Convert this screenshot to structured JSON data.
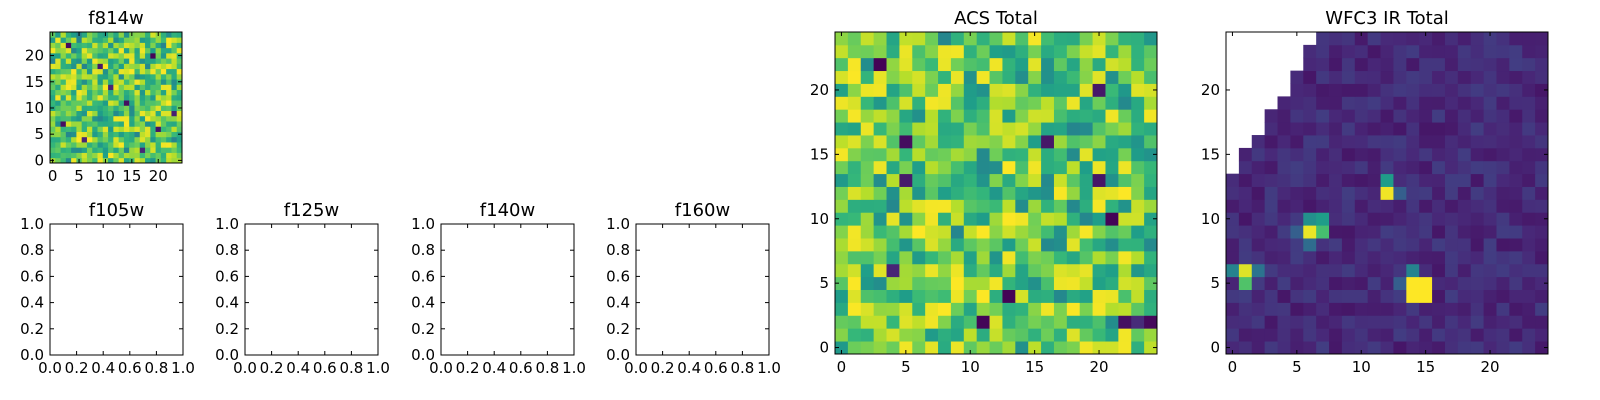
{
  "chart_data": [
    {
      "type": "heatmap",
      "title": "f814w",
      "grid_size": 25,
      "colormap": "viridis",
      "xticks": [
        "0",
        "5",
        "10",
        "15",
        "20"
      ],
      "yticks": [
        "0",
        "5",
        "10",
        "15",
        "20"
      ],
      "xlim": [
        -0.5,
        24.5
      ],
      "ylim": [
        -0.5,
        24.5
      ],
      "value_range": [
        0,
        1
      ],
      "low_value_cells": [
        [
          3,
          22
        ],
        [
          9,
          18
        ],
        [
          14,
          11
        ],
        [
          20,
          6
        ],
        [
          6,
          4
        ],
        [
          17,
          2
        ],
        [
          23,
          9
        ],
        [
          11,
          14
        ],
        [
          2,
          7
        ],
        [
          19,
          20
        ]
      ],
      "high_value_cells": [
        [
          5,
          5
        ],
        [
          13,
          8
        ],
        [
          21,
          3
        ],
        [
          8,
          19
        ],
        [
          16,
          15
        ],
        [
          1,
          12
        ],
        [
          24,
          17
        ]
      ]
    },
    {
      "type": "empty",
      "title": "f105w",
      "xlim": [
        0,
        1
      ],
      "ylim": [
        0,
        1
      ],
      "xticks": [
        "0.0",
        "0.2",
        "0.4",
        "0.6",
        "0.8",
        "1.0"
      ],
      "yticks": [
        "0.0",
        "0.2",
        "0.4",
        "0.6",
        "0.8",
        "1.0"
      ]
    },
    {
      "type": "empty",
      "title": "f125w",
      "xlim": [
        0,
        1
      ],
      "ylim": [
        0,
        1
      ],
      "xticks": [
        "0.0",
        "0.2",
        "0.4",
        "0.6",
        "0.8",
        "1.0"
      ],
      "yticks": [
        "0.0",
        "0.2",
        "0.4",
        "0.6",
        "0.8",
        "1.0"
      ]
    },
    {
      "type": "empty",
      "title": "f140w",
      "xlim": [
        0,
        1
      ],
      "ylim": [
        0,
        1
      ],
      "xticks": [
        "0.0",
        "0.2",
        "0.4",
        "0.6",
        "0.8",
        "1.0"
      ],
      "yticks": [
        "0.0",
        "0.2",
        "0.4",
        "0.6",
        "0.8",
        "1.0"
      ]
    },
    {
      "type": "empty",
      "title": "f160w",
      "xlim": [
        0,
        1
      ],
      "ylim": [
        0,
        1
      ],
      "xticks": [
        "0.0",
        "0.2",
        "0.4",
        "0.6",
        "0.8",
        "1.0"
      ],
      "yticks": [
        "0.0",
        "0.2",
        "0.4",
        "0.6",
        "0.8",
        "1.0"
      ]
    },
    {
      "type": "heatmap",
      "title": "ACS Total",
      "grid_size": 25,
      "colormap": "viridis",
      "xticks": [
        "0",
        "5",
        "10",
        "15",
        "20"
      ],
      "yticks": [
        "0",
        "5",
        "10",
        "15",
        "20"
      ],
      "xlim": [
        -0.5,
        24.5
      ],
      "ylim": [
        -0.5,
        24.5
      ],
      "value_range": [
        0,
        1
      ],
      "low_value_cells": [
        [
          5,
          16
        ],
        [
          16,
          16
        ],
        [
          5,
          13
        ],
        [
          20,
          20
        ],
        [
          3,
          22
        ],
        [
          4,
          6
        ],
        [
          13,
          4
        ],
        [
          22,
          2
        ],
        [
          23,
          2
        ],
        [
          24,
          2
        ],
        [
          21,
          10
        ],
        [
          11,
          2
        ],
        [
          20,
          13
        ]
      ],
      "high_value_cells": [
        [
          7,
          10
        ],
        [
          1,
          8
        ],
        [
          14,
          10
        ],
        [
          7,
          2
        ],
        [
          15,
          14
        ],
        [
          21,
          18
        ],
        [
          12,
          22
        ],
        [
          20,
          4
        ]
      ]
    },
    {
      "type": "heatmap",
      "title": "WFC3 IR Total",
      "grid_size": 25,
      "colormap": "viridis",
      "xticks": [
        "0",
        "5",
        "10",
        "15",
        "20"
      ],
      "yticks": [
        "0",
        "5",
        "10",
        "15",
        "20"
      ],
      "xlim": [
        -0.5,
        24.5
      ],
      "ylim": [
        -0.5,
        24.5
      ],
      "value_range": [
        0,
        1
      ],
      "masked_region": "top-left corner (no data)",
      "bright_sources": [
        {
          "x": 1,
          "y": 6,
          "value": 0.95
        },
        {
          "x": 1,
          "y": 5,
          "value": 0.72
        },
        {
          "x": 0,
          "y": 6,
          "value": 0.45
        },
        {
          "x": 2,
          "y": 6,
          "value": 0.38
        },
        {
          "x": 6,
          "y": 10,
          "value": 0.5
        },
        {
          "x": 7,
          "y": 10,
          "value": 0.55
        },
        {
          "x": 6,
          "y": 9,
          "value": 0.97
        },
        {
          "x": 7,
          "y": 9,
          "value": 0.7
        },
        {
          "x": 5,
          "y": 9,
          "value": 0.3
        },
        {
          "x": 6,
          "y": 8,
          "value": 0.35
        },
        {
          "x": 12,
          "y": 13,
          "value": 0.55
        },
        {
          "x": 12,
          "y": 12,
          "value": 0.98
        },
        {
          "x": 13,
          "y": 12,
          "value": 0.3
        },
        {
          "x": 14,
          "y": 5,
          "value": 1.0
        },
        {
          "x": 15,
          "y": 5,
          "value": 1.0
        },
        {
          "x": 14,
          "y": 4,
          "value": 1.0
        },
        {
          "x": 15,
          "y": 4,
          "value": 1.0
        },
        {
          "x": 14,
          "y": 6,
          "value": 0.45
        },
        {
          "x": 13,
          "y": 5,
          "value": 0.3
        }
      ]
    }
  ]
}
